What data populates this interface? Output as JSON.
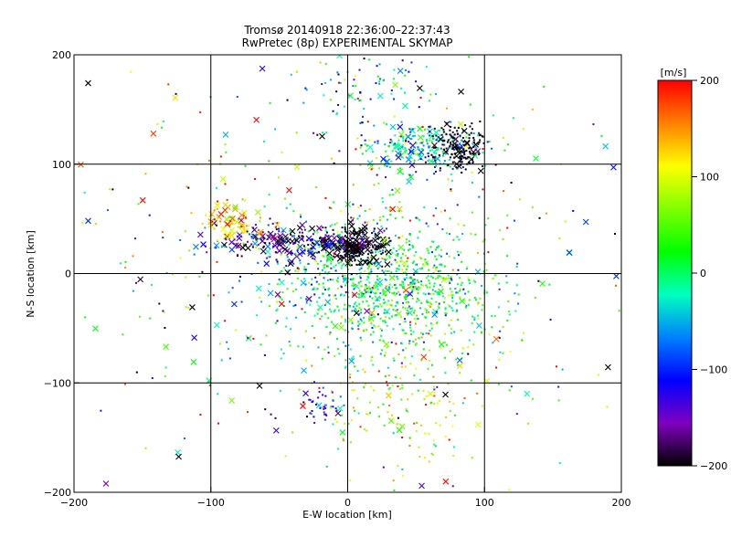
{
  "chart_data": [
    {
      "type": "scatter",
      "title": "Tromsø 20140918 22:36:00–22:37:43",
      "subtitle": "RwPretec (8p) EXPERIMENTAL SKYMAP",
      "xlabel": "E-W location [km]",
      "ylabel": "N-S location [km]",
      "xlim": [
        -200,
        200
      ],
      "ylim": [
        -200,
        200
      ],
      "x_ticks": [
        "-200",
        "-100",
        "0",
        "100",
        "200"
      ],
      "y_ticks": [
        "-200",
        "-100",
        "0",
        "100",
        "200"
      ],
      "grid": true,
      "marker_types": [
        "dot",
        "cross"
      ],
      "point_clusters": [
        {
          "cx": 15,
          "cy": -5,
          "sx": 35,
          "sy": 30,
          "n": 700,
          "v": -10,
          "dv": 60,
          "cross": 0.04
        },
        {
          "cx": 55,
          "cy": -20,
          "sx": 30,
          "sy": 25,
          "n": 300,
          "v": 20,
          "dv": 50,
          "cross": 0.03
        },
        {
          "cx": 5,
          "cy": 25,
          "sx": 12,
          "sy": 8,
          "n": 200,
          "v": -200,
          "dv": 8,
          "cross": 0.35
        },
        {
          "cx": -45,
          "cy": 28,
          "sx": 25,
          "sy": 8,
          "n": 200,
          "v": -160,
          "dv": 50,
          "cross": 0.35
        },
        {
          "cx": -85,
          "cy": 45,
          "sx": 10,
          "sy": 10,
          "n": 70,
          "v": 140,
          "dv": 40,
          "cross": 0.5
        },
        {
          "cx": 55,
          "cy": 115,
          "sx": 22,
          "sy": 10,
          "n": 250,
          "v": -40,
          "dv": 60,
          "cross": 0.12
        },
        {
          "cx": 80,
          "cy": 115,
          "sx": 10,
          "sy": 12,
          "n": 150,
          "v": -200,
          "dv": 10,
          "cross": 0.1
        },
        {
          "cx": 15,
          "cy": 170,
          "sx": 25,
          "sy": 15,
          "n": 80,
          "v": -50,
          "dv": 80,
          "cross": 0.1
        },
        {
          "cx": 40,
          "cy": -120,
          "sx": 30,
          "sy": 30,
          "n": 150,
          "v": 90,
          "dv": 60,
          "cross": 0.08
        },
        {
          "cx": -20,
          "cy": -120,
          "sx": 8,
          "sy": 8,
          "n": 40,
          "v": -120,
          "dv": 40,
          "cross": 0.1
        },
        {
          "cx": 0,
          "cy": 0,
          "sx": 110,
          "sy": 110,
          "n": 500,
          "v": 0,
          "dv": 130,
          "cross": 0.18
        }
      ]
    },
    {
      "type": "colorbar",
      "label": "[m/s]",
      "range": [
        -200,
        200
      ],
      "ticks": [
        "200",
        "100",
        "0",
        "-100",
        "-200"
      ],
      "colormap": [
        "#ff0000",
        "#ff8000",
        "#ffff00",
        "#80ff00",
        "#00ff00",
        "#00ffc0",
        "#0080ff",
        "#0000ff",
        "#8000c0",
        "#000000"
      ]
    }
  ]
}
